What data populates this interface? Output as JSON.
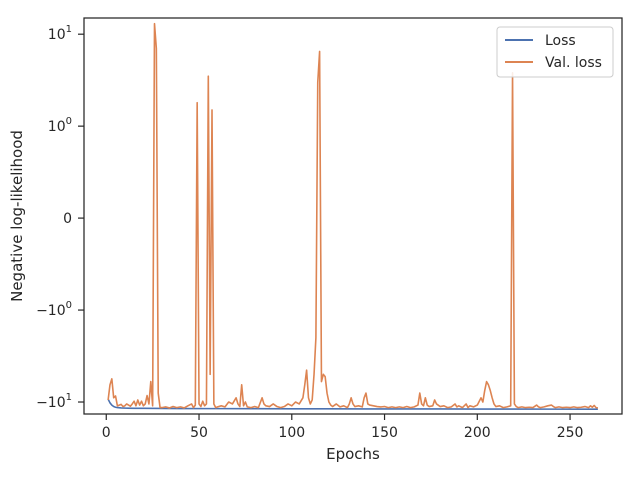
{
  "chart_data": {
    "type": "line",
    "title": "",
    "xlabel": "Epochs",
    "ylabel": "Negative log-likelihood",
    "xlim": [
      -12,
      278
    ],
    "yscale": "symlog",
    "symlog_linthresh": 1,
    "ylim": [
      -13.5,
      15
    ],
    "grid": false,
    "legend_position": "top-right",
    "x_ticks": [
      {
        "value": 0,
        "label": "0"
      },
      {
        "value": 50,
        "label": "50"
      },
      {
        "value": 100,
        "label": "100"
      },
      {
        "value": 150,
        "label": "150"
      },
      {
        "value": 200,
        "label": "200"
      },
      {
        "value": 250,
        "label": "250"
      }
    ],
    "y_ticks": [
      {
        "value": 10,
        "base": "10",
        "exp": "1",
        "sign": ""
      },
      {
        "value": 1,
        "base": "10",
        "exp": "0",
        "sign": ""
      },
      {
        "value": 0,
        "base": "0",
        "exp": "",
        "sign": ""
      },
      {
        "value": -1,
        "base": "10",
        "exp": "0",
        "sign": "−"
      },
      {
        "value": -10,
        "base": "10",
        "exp": "1",
        "sign": "−"
      }
    ],
    "series": [
      {
        "name": "Loss",
        "color": "#4c72b0",
        "points": [
          [
            1,
            -9.3
          ],
          [
            2,
            -10.2
          ],
          [
            3,
            -10.8
          ],
          [
            4,
            -11.2
          ],
          [
            5,
            -11.4
          ],
          [
            6,
            -11.5
          ],
          [
            8,
            -11.6
          ],
          [
            10,
            -11.65
          ],
          [
            15,
            -11.7
          ],
          [
            20,
            -11.72
          ],
          [
            30,
            -11.75
          ],
          [
            40,
            -11.78
          ],
          [
            60,
            -11.8
          ],
          [
            80,
            -11.82
          ],
          [
            100,
            -11.85
          ],
          [
            120,
            -11.86
          ],
          [
            140,
            -11.88
          ],
          [
            160,
            -11.9
          ],
          [
            180,
            -11.9
          ],
          [
            200,
            -11.92
          ],
          [
            220,
            -11.93
          ],
          [
            240,
            -11.95
          ],
          [
            265,
            -11.97
          ]
        ]
      },
      {
        "name": "Val. loss",
        "color": "#dd8452",
        "points": [
          [
            1,
            -9.5
          ],
          [
            2,
            -6.5
          ],
          [
            3,
            -5.6
          ],
          [
            4,
            -9.0
          ],
          [
            5,
            -8.6
          ],
          [
            6,
            -11.0
          ],
          [
            7,
            -10.8
          ],
          [
            8,
            -10.6
          ],
          [
            9,
            -11.2
          ],
          [
            10,
            -11.0
          ],
          [
            11,
            -10.5
          ],
          [
            12,
            -10.8
          ],
          [
            13,
            -11.1
          ],
          [
            14,
            -10.5
          ],
          [
            15,
            -9.8
          ],
          [
            16,
            -11.0
          ],
          [
            17,
            -9.5
          ],
          [
            18,
            -10.8
          ],
          [
            19,
            -9.8
          ],
          [
            20,
            -11.0
          ],
          [
            21,
            -10.5
          ],
          [
            22,
            -8.5
          ],
          [
            23,
            -10.5
          ],
          [
            24,
            -6.0
          ],
          [
            25,
            -11.0
          ],
          [
            26,
            13.0
          ],
          [
            27,
            7.0
          ],
          [
            28,
            -8.0
          ],
          [
            29,
            -11.5
          ],
          [
            30,
            -11.5
          ],
          [
            32,
            -11.3
          ],
          [
            34,
            -11.6
          ],
          [
            36,
            -11.2
          ],
          [
            38,
            -11.5
          ],
          [
            40,
            -11.3
          ],
          [
            42,
            -11.6
          ],
          [
            44,
            -11.0
          ],
          [
            46,
            -10.5
          ],
          [
            47,
            -11.5
          ],
          [
            48,
            -10.8
          ],
          [
            49,
            1.8
          ],
          [
            50,
            -10.5
          ],
          [
            51,
            -11.2
          ],
          [
            52,
            -9.8
          ],
          [
            53,
            -11.0
          ],
          [
            54,
            -10.5
          ],
          [
            55,
            3.5
          ],
          [
            56,
            -5.0
          ],
          [
            57,
            1.5
          ],
          [
            58,
            -10.5
          ],
          [
            59,
            -11.5
          ],
          [
            60,
            -11.3
          ],
          [
            62,
            -11.0
          ],
          [
            64,
            -11.3
          ],
          [
            66,
            -10.0
          ],
          [
            68,
            -10.5
          ],
          [
            70,
            -9.0
          ],
          [
            71,
            -10.5
          ],
          [
            72,
            -11.2
          ],
          [
            73,
            -6.5
          ],
          [
            74,
            -11.0
          ],
          [
            75,
            -10.0
          ],
          [
            76,
            -11.3
          ],
          [
            78,
            -11.5
          ],
          [
            80,
            -11.2
          ],
          [
            82,
            -11.5
          ],
          [
            84,
            -9.0
          ],
          [
            85,
            -10.5
          ],
          [
            86,
            -11.0
          ],
          [
            88,
            -11.2
          ],
          [
            90,
            -10.5
          ],
          [
            92,
            -11.2
          ],
          [
            94,
            -11.5
          ],
          [
            96,
            -11.2
          ],
          [
            98,
            -10.5
          ],
          [
            100,
            -11.0
          ],
          [
            102,
            -10.0
          ],
          [
            104,
            -10.5
          ],
          [
            106,
            -9.0
          ],
          [
            107,
            -6.5
          ],
          [
            108,
            -4.5
          ],
          [
            109,
            -9.0
          ],
          [
            110,
            -10.5
          ],
          [
            111,
            -9.5
          ],
          [
            112,
            -5.0
          ],
          [
            113,
            -2.0
          ],
          [
            114,
            3.0
          ],
          [
            115,
            6.5
          ],
          [
            116,
            -6.0
          ],
          [
            117,
            -5.0
          ],
          [
            118,
            -5.3
          ],
          [
            119,
            -8.0
          ],
          [
            120,
            -10.0
          ],
          [
            121,
            -10.8
          ],
          [
            122,
            -11.2
          ],
          [
            124,
            -10.5
          ],
          [
            126,
            -11.3
          ],
          [
            128,
            -11.0
          ],
          [
            130,
            -11.5
          ],
          [
            131,
            -10.5
          ],
          [
            132,
            -9.0
          ],
          [
            133,
            -10.5
          ],
          [
            134,
            -11.2
          ],
          [
            136,
            -11.0
          ],
          [
            138,
            -11.3
          ],
          [
            139,
            -9.0
          ],
          [
            140,
            -8.0
          ],
          [
            141,
            -10.5
          ],
          [
            142,
            -10.8
          ],
          [
            144,
            -11.0
          ],
          [
            146,
            -11.2
          ],
          [
            148,
            -11.3
          ],
          [
            150,
            -11.2
          ],
          [
            152,
            -11.5
          ],
          [
            154,
            -11.3
          ],
          [
            156,
            -11.5
          ],
          [
            158,
            -11.3
          ],
          [
            160,
            -11.5
          ],
          [
            162,
            -11.2
          ],
          [
            164,
            -11.5
          ],
          [
            166,
            -11.3
          ],
          [
            168,
            -10.8
          ],
          [
            169,
            -8.0
          ],
          [
            170,
            -10.5
          ],
          [
            171,
            -11.0
          ],
          [
            172,
            -9.0
          ],
          [
            173,
            -10.8
          ],
          [
            174,
            -11.2
          ],
          [
            176,
            -11.0
          ],
          [
            177,
            -9.5
          ],
          [
            178,
            -10.5
          ],
          [
            180,
            -11.2
          ],
          [
            182,
            -11.0
          ],
          [
            184,
            -11.5
          ],
          [
            186,
            -11.3
          ],
          [
            188,
            -10.5
          ],
          [
            189,
            -11.3
          ],
          [
            190,
            -11.0
          ],
          [
            192,
            -11.5
          ],
          [
            194,
            -10.5
          ],
          [
            195,
            -11.5
          ],
          [
            196,
            -11.0
          ],
          [
            198,
            -11.3
          ],
          [
            200,
            -10.8
          ],
          [
            202,
            -9.0
          ],
          [
            203,
            -10.0
          ],
          [
            204,
            -7.5
          ],
          [
            205,
            -6.0
          ],
          [
            206,
            -6.5
          ],
          [
            207,
            -7.5
          ],
          [
            208,
            -9.0
          ],
          [
            209,
            -10.5
          ],
          [
            210,
            -11.2
          ],
          [
            212,
            -11.0
          ],
          [
            214,
            -11.5
          ],
          [
            216,
            -11.3
          ],
          [
            218,
            -11.0
          ],
          [
            219,
            3.8
          ],
          [
            220,
            -10.5
          ],
          [
            221,
            -11.2
          ],
          [
            222,
            -11.5
          ],
          [
            224,
            -11.3
          ],
          [
            226,
            -11.5
          ],
          [
            228,
            -11.4
          ],
          [
            230,
            -11.5
          ],
          [
            232,
            -10.8
          ],
          [
            233,
            -11.3
          ],
          [
            234,
            -11.5
          ],
          [
            236,
            -11.3
          ],
          [
            238,
            -11.0
          ],
          [
            240,
            -10.8
          ],
          [
            241,
            -11.2
          ],
          [
            242,
            -11.5
          ],
          [
            244,
            -11.3
          ],
          [
            246,
            -11.5
          ],
          [
            248,
            -11.4
          ],
          [
            250,
            -11.5
          ],
          [
            252,
            -11.3
          ],
          [
            254,
            -11.5
          ],
          [
            256,
            -11.4
          ],
          [
            258,
            -11.2
          ],
          [
            260,
            -11.5
          ],
          [
            261,
            -11.0
          ],
          [
            262,
            -11.4
          ],
          [
            263,
            -10.9
          ],
          [
            264,
            -11.5
          ],
          [
            265,
            -11.6
          ]
        ]
      }
    ]
  }
}
